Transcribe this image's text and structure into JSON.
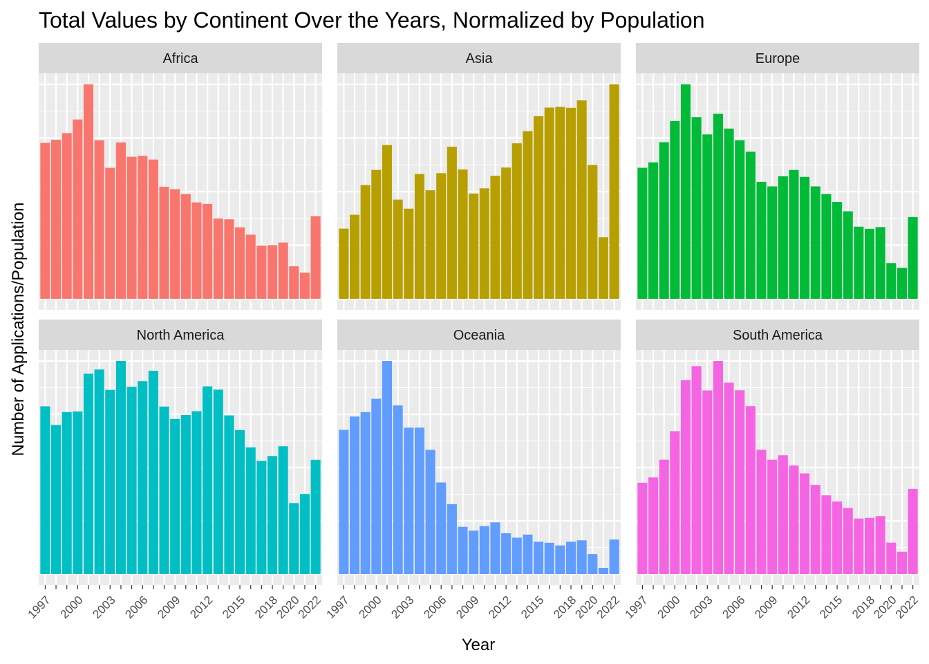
{
  "chart_data": {
    "type": "bar",
    "title": "Total Values by Continent Over the Years, Normalized by Population",
    "xlabel": "Year",
    "ylabel": "Number of Applications/Population",
    "facets": "free_y",
    "grid": true,
    "x_tick_labels": [
      "1997",
      "2000",
      "2003",
      "2006",
      "2009",
      "2012",
      "2015",
      "2018",
      "2020",
      "2022"
    ],
    "categories": [
      1997,
      1998,
      1999,
      2000,
      2001,
      2002,
      2003,
      2004,
      2005,
      2006,
      2007,
      2008,
      2009,
      2010,
      2011,
      2012,
      2013,
      2014,
      2015,
      2016,
      2017,
      2018,
      2019,
      2020,
      2021,
      2022
    ],
    "series": [
      {
        "name": "Africa",
        "color": "#F8766D",
        "values": [
          72,
          73.4,
          76.5,
          82.8,
          99,
          73.2,
          60.5,
          72.2,
          65.6,
          66,
          64.3,
          51.7,
          50.6,
          48.4,
          44.5,
          43.8,
          37.1,
          36.7,
          33,
          29.6,
          24.6,
          24.8,
          26,
          15,
          12.1,
          38.2
        ]
      },
      {
        "name": "Asia",
        "color": "#B79F00",
        "values": [
          32.4,
          38.8,
          52.5,
          59.5,
          71,
          45.8,
          41.6,
          57.6,
          50.1,
          58,
          70.2,
          59.7,
          48.6,
          51,
          56.8,
          60.6,
          71.8,
          77.4,
          84.3,
          88.3,
          88.6,
          88.2,
          91.6,
          61.8,
          28.4,
          99
        ]
      },
      {
        "name": "Europe",
        "color": "#00BA38",
        "values": [
          60.5,
          63,
          72.3,
          82.1,
          99,
          83.9,
          75.9,
          85.4,
          78.6,
          73.2,
          67.9,
          54,
          51.9,
          56.6,
          59.5,
          56.3,
          51.9,
          48.4,
          44.7,
          40.4,
          33.3,
          32.3,
          33.1,
          16.5,
          14.3,
          37.7
        ]
      },
      {
        "name": "North America",
        "color": "#00BFC4",
        "values": [
          75.6,
          67.2,
          73,
          73.3,
          90.3,
          92.2,
          83,
          96,
          84.4,
          86.9,
          91.6,
          75.5,
          69.9,
          71.7,
          73.4,
          84.6,
          83.1,
          71.5,
          64.9,
          57.1,
          51,
          53.2,
          57.6,
          32,
          36.1,
          51.5
        ]
      },
      {
        "name": "Oceania",
        "color": "#619CFF",
        "values": [
          65,
          71,
          73,
          79,
          96,
          76,
          66,
          66,
          56,
          41.3,
          31.5,
          21.3,
          19.6,
          21.6,
          23.3,
          18.4,
          16.4,
          17.8,
          14.6,
          14.1,
          12.9,
          14.6,
          15.2,
          9,
          2.8,
          15.6
        ]
      },
      {
        "name": "South America",
        "color": "#F564E3",
        "values": [
          41.3,
          43.7,
          51.7,
          64.6,
          87.7,
          94,
          83,
          96.3,
          86.5,
          83.1,
          75.9,
          56.2,
          51.7,
          53.7,
          49.1,
          45.5,
          40.3,
          35.6,
          32.8,
          29.9,
          25.1,
          25.4,
          26.2,
          14.2,
          10.1,
          38.5
        ]
      }
    ]
  }
}
